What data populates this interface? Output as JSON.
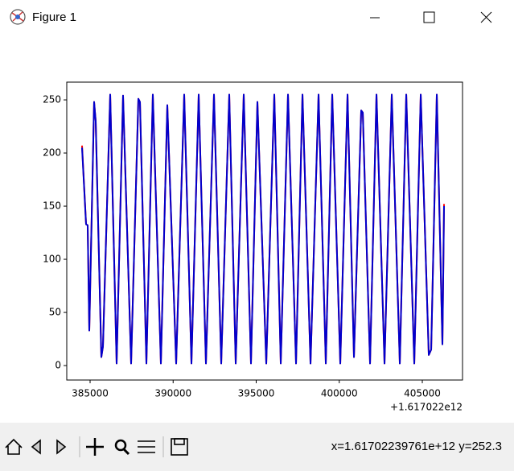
{
  "window": {
    "title": "Figure 1"
  },
  "chart_data": {
    "type": "line",
    "x": [
      384516,
      384758,
      384855,
      384952,
      385242,
      385339,
      385678,
      385775,
      386211,
      386598,
      386985,
      387470,
      387906,
      388003,
      388390,
      388777,
      389262,
      389649,
      390182,
      390666,
      391102,
      391538,
      391974,
      392458,
      392894,
      393378,
      393766,
      394250,
      394686,
      395073,
      395606,
      396090,
      396478,
      396914,
      397398,
      397786,
      398270,
      398754,
      399190,
      399577,
      400062,
      400498,
      400885,
      401321,
      401418,
      401854,
      402241,
      402725,
      403161,
      403646,
      404033,
      404517,
      404905,
      405389,
      405534,
      405873,
      406211,
      406308
    ],
    "series": [
      {
        "color": "#ff0000",
        "values": [
          207,
          133,
          132,
          33,
          248,
          230,
          8,
          18,
          255,
          2,
          254,
          2,
          251,
          248,
          2,
          255,
          2,
          245,
          2,
          255,
          2,
          255,
          2,
          255,
          2,
          255,
          2,
          255,
          2,
          248,
          2,
          255,
          2,
          255,
          2,
          255,
          2,
          255,
          2,
          255,
          2,
          255,
          8,
          240,
          238,
          2,
          255,
          2,
          255,
          2,
          255,
          2,
          255,
          10,
          15,
          255,
          20,
          152
        ]
      },
      {
        "color": "#0000cd",
        "values": [
          205,
          133,
          132,
          33,
          248,
          230,
          8,
          18,
          255,
          2,
          254,
          2,
          251,
          248,
          2,
          255,
          2,
          245,
          2,
          255,
          2,
          255,
          2,
          255,
          2,
          255,
          2,
          255,
          2,
          248,
          2,
          255,
          2,
          255,
          2,
          255,
          2,
          255,
          2,
          255,
          2,
          255,
          8,
          240,
          238,
          2,
          255,
          2,
          255,
          2,
          255,
          2,
          255,
          10,
          15,
          255,
          20,
          150
        ]
      }
    ],
    "xlim": [
      383596,
      407421
    ],
    "xticks": [
      385000,
      390000,
      395000,
      400000,
      405000
    ],
    "x_offset_label": "+1.617022e12",
    "ylim": [
      -13.6,
      266.7
    ],
    "yticks": [
      0,
      50,
      100,
      150,
      200,
      250
    ]
  },
  "toolbar": {
    "status": "x=1.61702239761e+12 y=252.3"
  }
}
